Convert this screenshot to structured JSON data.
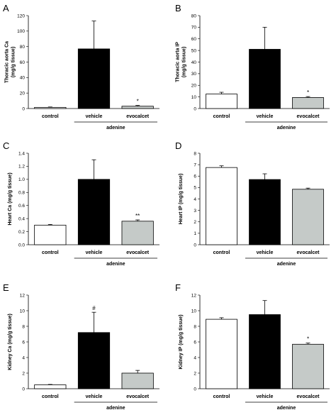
{
  "colors": {
    "control": "#ffffff",
    "vehicle": "#000000",
    "evocalcet": "#c5cac8",
    "stroke": "#000000"
  },
  "chart_data": [
    {
      "panel": "A",
      "type": "bar",
      "categories": [
        "control",
        "vehicle",
        "evocalcet"
      ],
      "values": [
        1.5,
        77,
        3
      ],
      "errors": [
        0.5,
        36,
        1
      ],
      "annotations": [
        "",
        "",
        "*"
      ],
      "ylabel_lines": [
        "Thoracic aorta Ca",
        "(mg/g tissue)"
      ],
      "ylim": [
        0,
        120
      ],
      "yticks": [
        "0",
        "20",
        "40",
        "60",
        "80",
        "100",
        "120"
      ],
      "group_label": "adenine"
    },
    {
      "panel": "B",
      "type": "bar",
      "categories": [
        "control",
        "vehicle",
        "evocalcet"
      ],
      "values": [
        12.5,
        51,
        9.5
      ],
      "errors": [
        1.5,
        19,
        0.8
      ],
      "annotations": [
        "",
        "",
        "*"
      ],
      "ylabel_lines": [
        "Thoracic aorta IP",
        "(mg/g tissue)"
      ],
      "ylim": [
        0,
        80
      ],
      "yticks": [
        "0",
        "10",
        "20",
        "30",
        "40",
        "50",
        "60",
        "70",
        "80"
      ],
      "group_label": "adenine"
    },
    {
      "panel": "C",
      "type": "bar",
      "categories": [
        "control",
        "vehicle",
        "evocalcet"
      ],
      "values": [
        0.3,
        1.0,
        0.36
      ],
      "errors": [
        0.01,
        0.3,
        0.02
      ],
      "annotations": [
        "",
        "",
        "**"
      ],
      "ylabel_lines": [
        "Heart Ca (mg/g tissue)"
      ],
      "ylim": [
        0,
        1.4
      ],
      "yticks": [
        "0.0",
        "0.2",
        "0.4",
        "0.6",
        "0.8",
        "1.0",
        "1.2",
        "1.4"
      ],
      "group_label": "adenine"
    },
    {
      "panel": "D",
      "type": "bar",
      "categories": [
        "control",
        "vehicle",
        "evocalcet"
      ],
      "values": [
        6.75,
        5.7,
        4.85
      ],
      "errors": [
        0.15,
        0.5,
        0.1
      ],
      "annotations": [
        "",
        "",
        ""
      ],
      "ylabel_lines": [
        "Heart IP (mg/g tissue)"
      ],
      "ylim": [
        0,
        8
      ],
      "yticks": [
        "0",
        "1",
        "2",
        "3",
        "4",
        "5",
        "6",
        "7",
        "8"
      ],
      "group_label": "adenine"
    },
    {
      "panel": "E",
      "type": "bar",
      "categories": [
        "control",
        "vehicle",
        "evocalcet"
      ],
      "values": [
        0.5,
        7.2,
        2.0
      ],
      "errors": [
        0.05,
        2.6,
        0.35
      ],
      "annotations": [
        "",
        "#",
        ""
      ],
      "ylabel_lines": [
        "Kidney Ca (mg/g tissue)"
      ],
      "ylim": [
        0,
        12
      ],
      "yticks": [
        "0",
        "2",
        "4",
        "6",
        "8",
        "10",
        "12"
      ],
      "group_label": "adenine"
    },
    {
      "panel": "F",
      "type": "bar",
      "categories": [
        "control",
        "vehicle",
        "evocalcet"
      ],
      "values": [
        8.9,
        9.5,
        5.7
      ],
      "errors": [
        0.2,
        1.8,
        0.15
      ],
      "annotations": [
        "",
        "",
        "*"
      ],
      "ylabel_lines": [
        "Kidney IP (mg/g tissue)"
      ],
      "ylim": [
        0,
        12
      ],
      "yticks": [
        "0",
        "2",
        "4",
        "6",
        "8",
        "10",
        "12"
      ],
      "group_label": "adenine"
    }
  ]
}
